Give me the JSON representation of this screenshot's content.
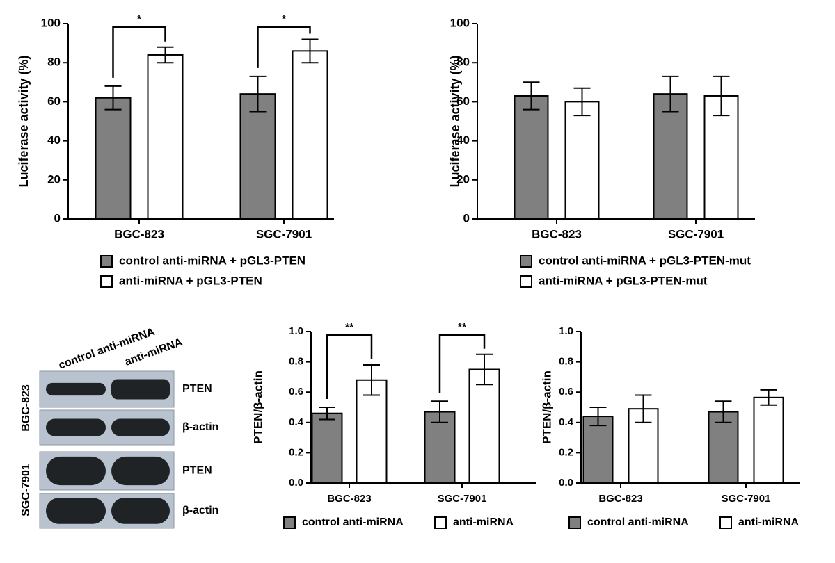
{
  "chart_data": [
    {
      "type": "bar",
      "y_label": "Luciferase activity (%)",
      "categories": [
        "BGC-823",
        "SGC-7901"
      ],
      "series": [
        {
          "name": "control anti-miRNA + pGL3-PTEN",
          "color": "#808080",
          "values": [
            62,
            64
          ],
          "errors": [
            6,
            9
          ]
        },
        {
          "name": "anti-miRNA + pGL3-PTEN",
          "color": "#ffffff",
          "values": [
            84,
            86
          ],
          "errors": [
            4,
            6
          ]
        }
      ],
      "significance": [
        "*",
        "*"
      ],
      "ylim": [
        0,
        100
      ],
      "yticks": [
        0,
        20,
        40,
        60,
        80,
        100
      ],
      "legend": "bottom"
    },
    {
      "type": "bar",
      "y_label": "Luciferase activity (%)",
      "categories": [
        "BGC-823",
        "SGC-7901"
      ],
      "series": [
        {
          "name": "control anti-miRNA + pGL3-PTEN-mut",
          "color": "#808080",
          "values": [
            63,
            64
          ],
          "errors": [
            7,
            9
          ]
        },
        {
          "name": "anti-miRNA + pGL3-PTEN-mut",
          "color": "#ffffff",
          "values": [
            60,
            63
          ],
          "errors": [
            7,
            10
          ]
        }
      ],
      "ylim": [
        0,
        100
      ],
      "yticks": [
        0,
        20,
        40,
        60,
        80,
        100
      ],
      "legend": "bottom"
    },
    {
      "type": "bar",
      "y_label": "PTEN/β-actin",
      "categories": [
        "BGC-823",
        "SGC-7901"
      ],
      "series": [
        {
          "name": "control anti-miRNA",
          "color": "#808080",
          "values": [
            0.46,
            0.47
          ],
          "errors": [
            0.04,
            0.07
          ]
        },
        {
          "name": "anti-miRNA",
          "color": "#ffffff",
          "values": [
            0.68,
            0.75
          ],
          "errors": [
            0.1,
            0.1
          ]
        }
      ],
      "significance": [
        "**",
        "**"
      ],
      "ylim": [
        0,
        1
      ],
      "yticks": [
        {
          "value": 0,
          "label": "0.0"
        },
        0.2,
        0.4,
        0.6,
        0.8,
        {
          "value": 1,
          "label": "1.0"
        }
      ],
      "legend": "bottom"
    },
    {
      "type": "bar",
      "y_label": "PTEN/β-actin",
      "categories": [
        "BGC-823",
        "SGC-7901"
      ],
      "series": [
        {
          "name": "control anti-miRNA",
          "color": "#808080",
          "values": [
            0.44,
            0.47
          ],
          "errors": [
            0.06,
            0.07
          ]
        },
        {
          "name": "anti-miRNA",
          "color": "#ffffff",
          "values": [
            0.49,
            0.565
          ],
          "errors": [
            0.09,
            0.05
          ]
        }
      ],
      "ylim": [
        0,
        1
      ],
      "yticks": [
        {
          "value": 0,
          "label": "0.0"
        },
        0.2,
        0.4,
        0.6,
        0.8,
        {
          "value": 1,
          "label": "1.0"
        }
      ],
      "legend": "bottom"
    }
  ],
  "blot": {
    "columns": [
      "control anti-miRNA",
      "anti-miRNA"
    ],
    "groups": [
      {
        "name": "BGC-823",
        "rows": [
          "PTEN",
          "β-actin"
        ]
      },
      {
        "name": "SGC-7901",
        "rows": [
          "PTEN",
          "β-actin"
        ]
      }
    ]
  }
}
